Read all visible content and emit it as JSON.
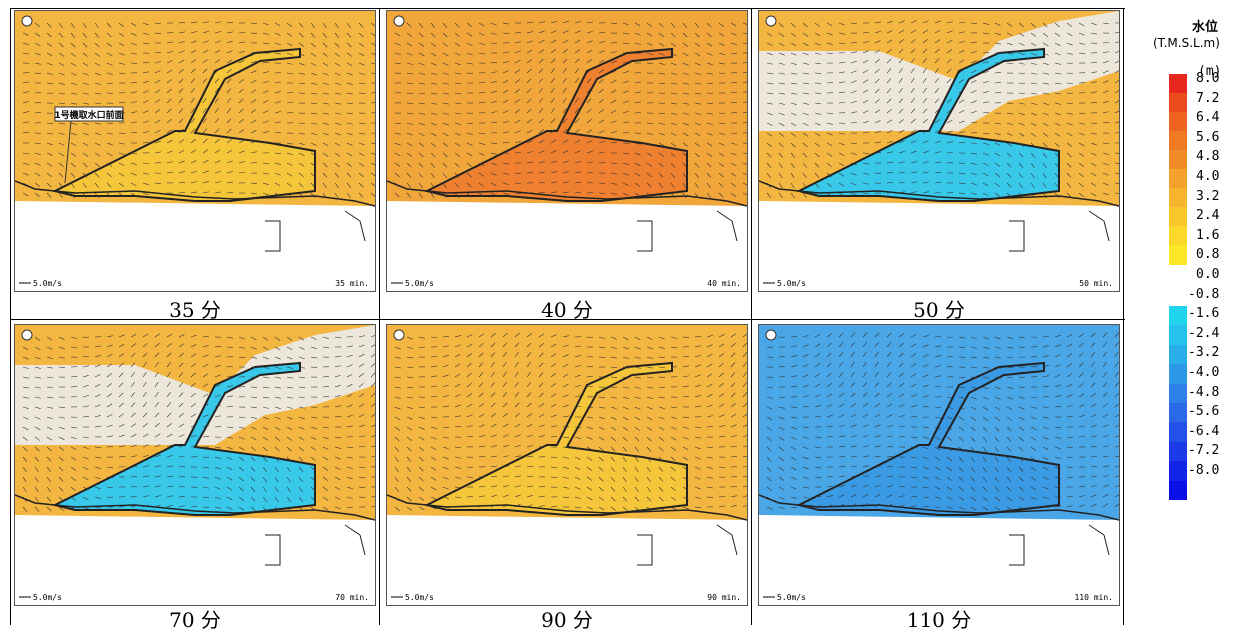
{
  "panels": [
    {
      "caption": "35 分",
      "time_label": "35 min.",
      "scale_label": "5.0m/s",
      "state": "high",
      "annotation": "1号機取水口前面"
    },
    {
      "caption": "40 分",
      "time_label": "40 min.",
      "scale_label": "5.0m/s",
      "state": "higher"
    },
    {
      "caption": "50 分",
      "time_label": "50 min.",
      "scale_label": "5.0m/s",
      "state": "low"
    },
    {
      "caption": "70 分",
      "time_label": "70 min.",
      "scale_label": "5.0m/s",
      "state": "mixed"
    },
    {
      "caption": "90 分",
      "time_label": "90 min.",
      "scale_label": "5.0m/s",
      "state": "high"
    },
    {
      "caption": "110 分",
      "time_label": "110 min.",
      "scale_label": "5.0m/s",
      "state": "lowest"
    }
  ],
  "legend": {
    "title": "水位",
    "unit": "(T.M.S.L.m)",
    "unit_m": "(m)",
    "positive_ticks": [
      "8.0",
      "7.2",
      "6.4",
      "5.6",
      "4.8",
      "4.0",
      "3.2",
      "2.4",
      "1.6",
      "0.8",
      "0.0"
    ],
    "negative_ticks": [
      "-0.8",
      "-1.6",
      "-2.4",
      "-3.2",
      "-4.0",
      "-4.8",
      "-5.6",
      "-6.4",
      "-7.2",
      "-8.0"
    ],
    "positive_colors": [
      "#e8281e",
      "#ec4a1c",
      "#ee6420",
      "#f07a24",
      "#f28c28",
      "#f5a22c",
      "#f7b42e",
      "#f9c62c",
      "#fbd82a",
      "#fde628"
    ],
    "negative_colors": [
      "#20d4ee",
      "#26c2ec",
      "#2aaeea",
      "#2c98e8",
      "#2c82e8",
      "#2a6ae8",
      "#2452e8",
      "#1c3ae8",
      "#1224e8",
      "#0a10e6"
    ]
  },
  "colors": {
    "high": "#f3b640",
    "higher": "#ee8030",
    "low": "#38c8ea",
    "lowest": "#3a96e0",
    "land": "#ffffff",
    "dry": "#ececec"
  }
}
